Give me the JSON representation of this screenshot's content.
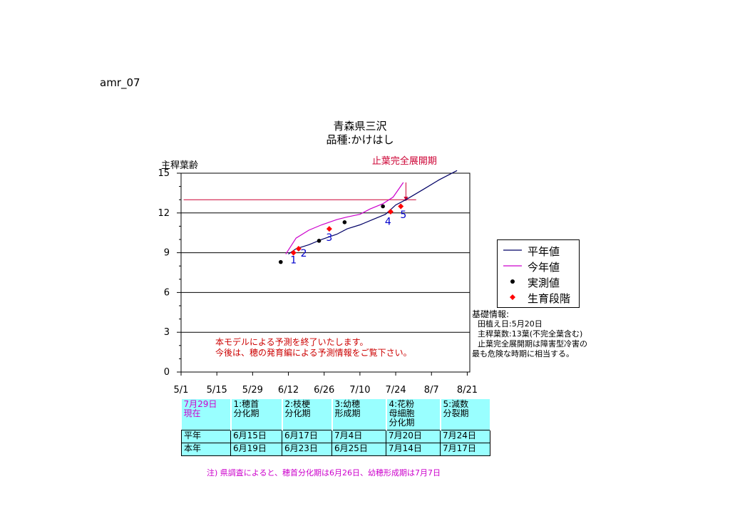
{
  "doc_label": "amr_07",
  "chart_data": {
    "type": "line",
    "title": "青森県三沢",
    "subtitle": "品種:かけはし",
    "ylabel": "主稈葉齢",
    "ylim": [
      0,
      15
    ],
    "yticks": [
      "0",
      "3",
      "6",
      "9",
      "12",
      "15"
    ],
    "xlim": [
      "5/1",
      "8/22"
    ],
    "xticks": [
      "5/1",
      "5/15",
      "5/29",
      "6/12",
      "6/26",
      "7/10",
      "7/24",
      "8/7",
      "8/21"
    ],
    "grid": true,
    "series": [
      {
        "name": "平年値",
        "color": "#000066",
        "points": [
          [
            "6/12",
            8.9
          ],
          [
            "6/15",
            9.3
          ],
          [
            "6/20",
            9.6
          ],
          [
            "6/25",
            10.0
          ],
          [
            "7/1",
            10.4
          ],
          [
            "7/5",
            10.8
          ],
          [
            "7/10",
            11.1
          ],
          [
            "7/15",
            11.5
          ],
          [
            "7/20",
            11.9
          ],
          [
            "7/24",
            12.6
          ],
          [
            "7/28",
            13.0
          ],
          [
            "8/4",
            13.8
          ],
          [
            "8/10",
            14.5
          ],
          [
            "8/17",
            15.2
          ]
        ]
      },
      {
        "name": "今年値",
        "color": "#cc00cc",
        "points": [
          [
            "6/11",
            8.9
          ],
          [
            "6/13",
            9.5
          ],
          [
            "6/15",
            10.1
          ],
          [
            "6/20",
            10.7
          ],
          [
            "6/25",
            11.1
          ],
          [
            "7/1",
            11.5
          ],
          [
            "7/5",
            11.7
          ],
          [
            "7/10",
            11.9
          ],
          [
            "7/14",
            12.3
          ],
          [
            "7/19",
            12.7
          ],
          [
            "7/23",
            13.2
          ],
          [
            "7/27",
            14.3
          ]
        ]
      },
      {
        "name": "実測値",
        "color": "#000000",
        "points": [
          [
            "6/9",
            8.3
          ],
          [
            "6/24",
            9.9
          ],
          [
            "7/4",
            11.3
          ],
          [
            "7/19",
            12.5
          ]
        ]
      },
      {
        "name": "生育段階",
        "color": "#ff0000",
        "points": [
          [
            "6/14",
            9.0
          ],
          [
            "6/16",
            9.3
          ],
          [
            "6/28",
            10.8
          ],
          [
            "7/22",
            12.1
          ],
          [
            "7/26",
            12.5
          ]
        ]
      }
    ],
    "stage_labels": [
      "1",
      "2",
      "3",
      "4",
      "5"
    ],
    "stage_label_positions": [
      [
        "6/14",
        8.2
      ],
      [
        "6/18",
        8.7
      ],
      [
        "6/28",
        9.9
      ],
      [
        "7/21",
        11.1
      ],
      [
        "7/27",
        11.6
      ]
    ],
    "reference_line": {
      "y": 13.0,
      "from": "5/2",
      "to": "8/1",
      "color": "#cc0033"
    },
    "annotation": {
      "text": "止葉完全展開期",
      "color": "#cc0033",
      "arrow_x": "7/28",
      "arrow_from": 14.3,
      "arrow_to": 12.9
    }
  },
  "legend": {
    "heikin": "平年値",
    "konen": "今年値",
    "jissoku": "実測値",
    "seiiku": "生育段階"
  },
  "info": {
    "title": "基礎情報:",
    "line1": "田植え日:5月20日",
    "line2": "主稈葉数:13葉(不完全葉含む)",
    "line3": "止葉完全展開期は障害型冷害の",
    "line4": "最も危険な時期に相当する。"
  },
  "notice": {
    "line1": "本モデルによる予測を終了いたします。",
    "line2": "今後は、穂の発育編による予測情報をご覧下さい。"
  },
  "stage_table": {
    "header": [
      "7月29日\n現在",
      "1:穂首\n分化期",
      "2:枝梗\n分化期",
      "3:幼穂\n形成期",
      "4:花粉\n母細胞\n分化期",
      "5:減数\n分裂期"
    ],
    "rows": [
      [
        "平年",
        "6月15日",
        "6月17日",
        "7月4日",
        "7月20日",
        "7月24日"
      ],
      [
        "本年",
        "6月19日",
        "6月23日",
        "6月25日",
        "7月14日",
        "7月17日"
      ]
    ]
  },
  "footnote": "注) 県調査によると、穂首分化期は6月26日、幼穂形成期は7月7日"
}
